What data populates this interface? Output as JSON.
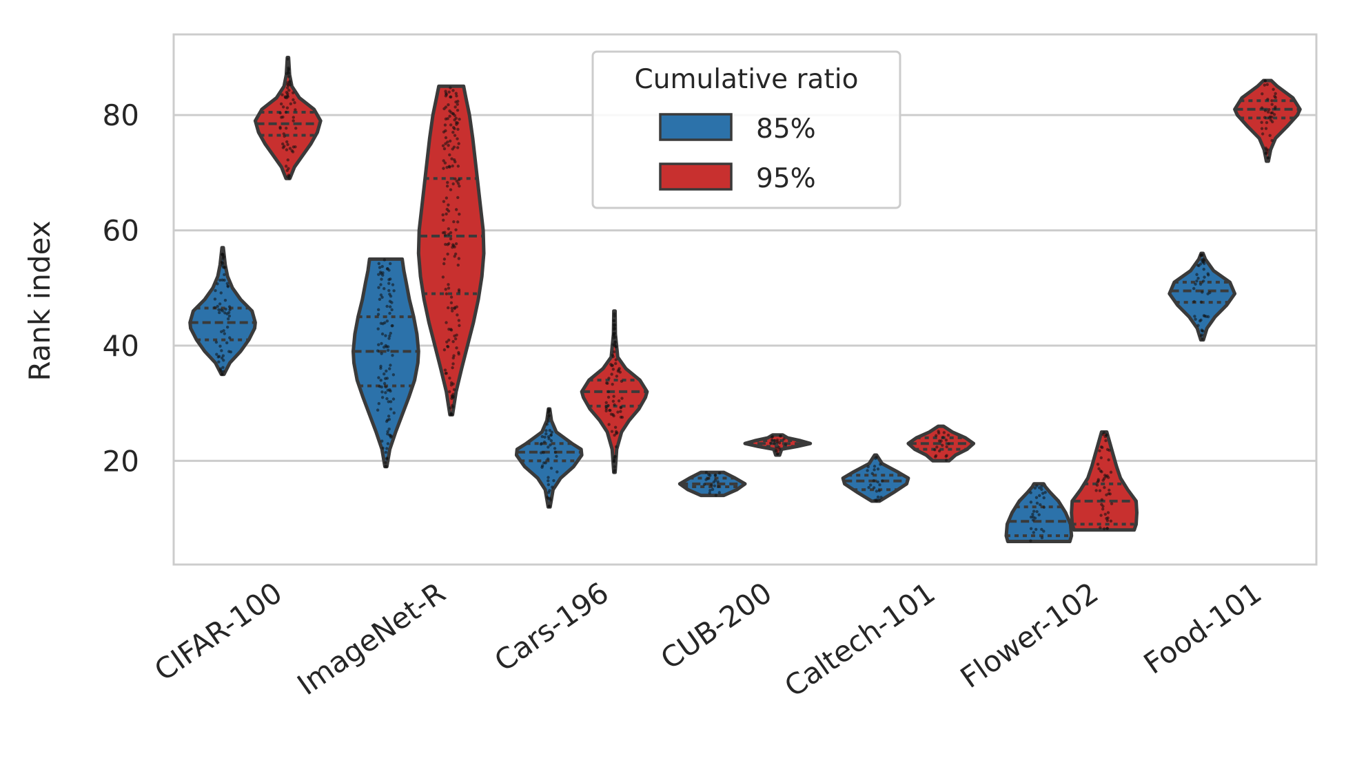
{
  "chart_data": {
    "type": "violin",
    "title": "",
    "xlabel": "",
    "ylabel": "Rank index",
    "ylim": [
      2,
      94
    ],
    "yticks": [
      20,
      40,
      60,
      80
    ],
    "grid": true,
    "categories": [
      "CIFAR-100",
      "ImageNet-R",
      "Cars-196",
      "CUB-200",
      "Caltech-101",
      "Flower-102",
      "Food-101"
    ],
    "legend": {
      "title": "Cumulative ratio",
      "placement": "top-center",
      "entries": [
        {
          "label": "85%",
          "color": "#2c72aa"
        },
        {
          "label": "95%",
          "color": "#c8302f"
        }
      ]
    },
    "series": [
      {
        "name": "85%",
        "color": "#2c72aa",
        "violins": [
          {
            "min": 35,
            "max": 57,
            "q1": 41,
            "median": 44,
            "q3": 46.5,
            "profile": [
              [
                35,
                0.04
              ],
              [
                37,
                0.22
              ],
              [
                39,
                0.55
              ],
              [
                41,
                0.8
              ],
              [
                43,
                0.98
              ],
              [
                44,
                1.0
              ],
              [
                46,
                0.9
              ],
              [
                48,
                0.55
              ],
              [
                50,
                0.3
              ],
              [
                52,
                0.15
              ],
              [
                54,
                0.08
              ],
              [
                57,
                0.02
              ]
            ]
          },
          {
            "min": 19,
            "max": 55,
            "q1": 33,
            "median": 39,
            "q3": 45,
            "profile": [
              [
                19,
                0.03
              ],
              [
                22,
                0.12
              ],
              [
                25,
                0.3
              ],
              [
                28,
                0.5
              ],
              [
                31,
                0.7
              ],
              [
                34,
                0.88
              ],
              [
                37,
                0.98
              ],
              [
                39,
                1.0
              ],
              [
                42,
                0.95
              ],
              [
                45,
                0.85
              ],
              [
                48,
                0.72
              ],
              [
                51,
                0.62
              ],
              [
                53,
                0.55
              ],
              [
                55,
                0.5
              ]
            ]
          },
          {
            "min": 12,
            "max": 29,
            "q1": 20,
            "median": 21.5,
            "q3": 23,
            "profile": [
              [
                12,
                0.03
              ],
              [
                15,
                0.12
              ],
              [
                17,
                0.35
              ],
              [
                19,
                0.75
              ],
              [
                21,
                1.0
              ],
              [
                22,
                0.98
              ],
              [
                23,
                0.7
              ],
              [
                25,
                0.22
              ],
              [
                27,
                0.07
              ],
              [
                29,
                0.02
              ]
            ]
          },
          {
            "min": 14,
            "max": 18,
            "q1": 15.5,
            "median": 16,
            "q3": 17,
            "profile": [
              [
                14,
                0.35
              ],
              [
                15,
                0.75
              ],
              [
                16,
                1.0
              ],
              [
                17,
                0.7
              ],
              [
                18,
                0.35
              ]
            ]
          },
          {
            "min": 13,
            "max": 21,
            "q1": 15,
            "median": 16.5,
            "q3": 17.5,
            "profile": [
              [
                13,
                0.12
              ],
              [
                14.5,
                0.55
              ],
              [
                16,
                0.95
              ],
              [
                17,
                1.0
              ],
              [
                18,
                0.7
              ],
              [
                19.5,
                0.2
              ],
              [
                21,
                0.03
              ]
            ]
          },
          {
            "min": 6,
            "max": 16,
            "q1": 7,
            "median": 9.5,
            "q3": 12,
            "profile": [
              [
                6,
                0.95
              ],
              [
                7,
                1.0
              ],
              [
                9,
                0.97
              ],
              [
                11,
                0.82
              ],
              [
                13,
                0.6
              ],
              [
                14.5,
                0.35
              ],
              [
                15.5,
                0.2
              ],
              [
                16,
                0.15
              ]
            ]
          },
          {
            "min": 41,
            "max": 56,
            "q1": 47.5,
            "median": 49.5,
            "q3": 51,
            "profile": [
              [
                41,
                0.04
              ],
              [
                43,
                0.15
              ],
              [
                45,
                0.4
              ],
              [
                47,
                0.75
              ],
              [
                49,
                1.0
              ],
              [
                51,
                0.85
              ],
              [
                53,
                0.35
              ],
              [
                55,
                0.1
              ],
              [
                56,
                0.03
              ]
            ]
          }
        ]
      },
      {
        "name": "95%",
        "color": "#c8302f",
        "violins": [
          {
            "min": 69,
            "max": 90,
            "q1": 76.5,
            "median": 78.5,
            "q3": 80.5,
            "profile": [
              [
                69,
                0.06
              ],
              [
                71,
                0.2
              ],
              [
                73,
                0.45
              ],
              [
                75,
                0.7
              ],
              [
                77,
                0.9
              ],
              [
                79,
                1.0
              ],
              [
                81,
                0.8
              ],
              [
                83,
                0.35
              ],
              [
                85,
                0.12
              ],
              [
                87,
                0.05
              ],
              [
                90,
                0.02
              ]
            ]
          },
          {
            "min": 28,
            "max": 85,
            "q1": 49,
            "median": 59,
            "q3": 69,
            "profile": [
              [
                28,
                0.04
              ],
              [
                32,
                0.15
              ],
              [
                36,
                0.32
              ],
              [
                40,
                0.5
              ],
              [
                44,
                0.68
              ],
              [
                48,
                0.83
              ],
              [
                52,
                0.94
              ],
              [
                56,
                1.0
              ],
              [
                60,
                0.98
              ],
              [
                64,
                0.9
              ],
              [
                68,
                0.82
              ],
              [
                72,
                0.74
              ],
              [
                76,
                0.66
              ],
              [
                80,
                0.56
              ],
              [
                83,
                0.45
              ],
              [
                85,
                0.38
              ]
            ]
          },
          {
            "min": 18,
            "max": 46,
            "q1": 29.5,
            "median": 32,
            "q3": 34,
            "profile": [
              [
                18,
                0.02
              ],
              [
                22,
                0.07
              ],
              [
                25,
                0.22
              ],
              [
                27,
                0.45
              ],
              [
                29,
                0.75
              ],
              [
                31,
                0.95
              ],
              [
                32,
                1.0
              ],
              [
                34,
                0.78
              ],
              [
                36,
                0.35
              ],
              [
                38,
                0.1
              ],
              [
                42,
                0.03
              ],
              [
                46,
                0.02
              ]
            ]
          },
          {
            "min": 21,
            "max": 24.5,
            "q1": 22.5,
            "median": 23,
            "q3": 23.5,
            "profile": [
              [
                21,
                0.06
              ],
              [
                22,
                0.12
              ],
              [
                22.5,
                0.6
              ],
              [
                23,
                1.0
              ],
              [
                23.5,
                0.7
              ],
              [
                24,
                0.3
              ],
              [
                24.5,
                0.15
              ]
            ]
          },
          {
            "min": 20,
            "max": 26,
            "q1": 22,
            "median": 23,
            "q3": 24,
            "profile": [
              [
                20,
                0.25
              ],
              [
                21,
                0.45
              ],
              [
                22,
                0.8
              ],
              [
                23,
                1.0
              ],
              [
                24,
                0.75
              ],
              [
                25,
                0.35
              ],
              [
                26,
                0.08
              ]
            ]
          },
          {
            "min": 8,
            "max": 25,
            "q1": 9,
            "median": 13,
            "q3": 16,
            "profile": [
              [
                8,
                0.92
              ],
              [
                9,
                0.98
              ],
              [
                11,
                1.0
              ],
              [
                13,
                0.98
              ],
              [
                15,
                0.72
              ],
              [
                17,
                0.5
              ],
              [
                19,
                0.38
              ],
              [
                21,
                0.28
              ],
              [
                23,
                0.18
              ],
              [
                25,
                0.08
              ]
            ]
          },
          {
            "min": 72,
            "max": 86,
            "q1": 79.5,
            "median": 81,
            "q3": 82.5,
            "profile": [
              [
                72,
                0.03
              ],
              [
                74,
                0.1
              ],
              [
                76,
                0.25
              ],
              [
                78,
                0.6
              ],
              [
                80,
                0.92
              ],
              [
                81,
                1.0
              ],
              [
                83,
                0.78
              ],
              [
                85,
                0.3
              ],
              [
                86,
                0.12
              ]
            ]
          }
        ]
      }
    ]
  }
}
